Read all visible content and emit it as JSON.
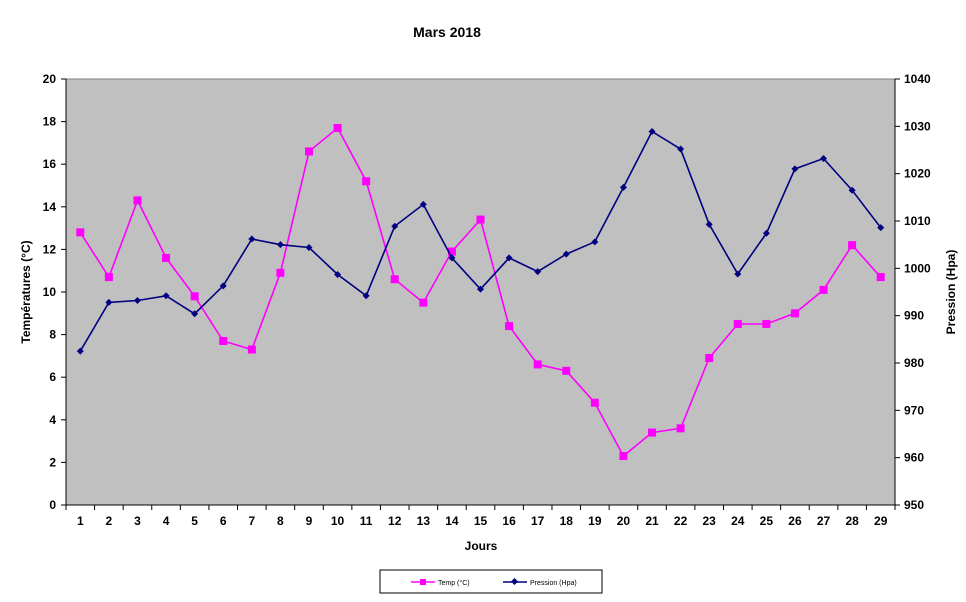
{
  "chart_data": {
    "type": "line",
    "title": "Mars 2018",
    "xlabel": "Jours",
    "ylabel_left": "Températures (°C)",
    "ylabel_right": "Pression (Hpa)",
    "x": [
      1,
      2,
      3,
      4,
      5,
      6,
      7,
      8,
      9,
      10,
      11,
      12,
      13,
      14,
      15,
      16,
      17,
      18,
      19,
      20,
      21,
      22,
      23,
      24,
      25,
      26,
      27,
      28,
      29
    ],
    "ylim_left": [
      0,
      20
    ],
    "yticks_left": [
      0,
      2,
      4,
      6,
      8,
      10,
      12,
      14,
      16,
      18,
      20
    ],
    "ylim_right": [
      950,
      1040
    ],
    "yticks_right": [
      950,
      960,
      970,
      980,
      990,
      1000,
      1010,
      1020,
      1030,
      1040
    ],
    "plot_background": "#c0c0c0",
    "grid": false,
    "legend_position": "bottom",
    "series": [
      {
        "name": "Temp (°C)",
        "axis": "left",
        "color": "#ff00ff",
        "marker": "square",
        "values": [
          12.8,
          10.7,
          14.3,
          11.6,
          9.8,
          7.7,
          7.3,
          10.9,
          16.6,
          17.7,
          15.2,
          10.6,
          9.5,
          11.9,
          13.4,
          8.4,
          6.6,
          6.3,
          4.8,
          2.3,
          3.4,
          3.6,
          6.9,
          8.5,
          8.5,
          9.0,
          10.1,
          12.2,
          10.7
        ]
      },
      {
        "name": "Pression (Hpa)",
        "axis": "right",
        "color": "#000080",
        "marker": "diamond",
        "values": [
          982.5,
          992.8,
          993.2,
          994.2,
          990.4,
          996.3,
          1006.2,
          1005.0,
          1004.4,
          998.7,
          994.2,
          1008.9,
          1013.5,
          1002.2,
          995.6,
          1002.2,
          999.3,
          1003.0,
          1005.6,
          1017.1,
          1028.9,
          1025.2,
          1009.3,
          998.8,
          1007.4,
          1021.0,
          1023.2,
          1016.5,
          1008.6
        ]
      }
    ]
  }
}
